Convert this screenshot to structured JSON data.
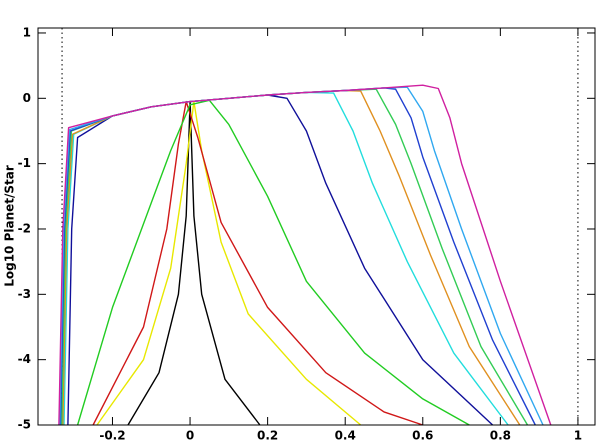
{
  "chart_data": {
    "type": "line",
    "y_label": "Log10 Planet/Star",
    "xlim": [
      -0.392,
      1.044
    ],
    "ylim": [
      -5,
      1.076
    ],
    "xticks": [
      -0.2,
      0,
      0.2,
      0.4,
      0.6,
      0.8,
      1
    ],
    "yticks": [
      -5,
      -4,
      -3,
      -2,
      -1,
      0,
      1
    ],
    "vlines": [
      -0.33,
      1
    ],
    "series": [
      {
        "color": "#000000",
        "x": [
          -0.16,
          -0.08,
          -0.03,
          -0.01,
          0,
          0.01,
          0.03,
          0.09,
          0.18
        ],
        "values": [
          -5,
          -4.2,
          -3,
          -1.8,
          -0.05,
          -1.8,
          -3,
          -4.3,
          -5
        ]
      },
      {
        "color": "#e8e800",
        "x": [
          -0.24,
          -0.12,
          -0.05,
          -0.01,
          0.01,
          0.03,
          0.08,
          0.15,
          0.3,
          0.44
        ],
        "values": [
          -5,
          -4,
          -2.6,
          -1,
          -0.05,
          -0.8,
          -2.2,
          -3.3,
          -4.3,
          -5
        ]
      },
      {
        "color": "#d01818",
        "x": [
          -0.25,
          -0.12,
          -0.06,
          -0.03,
          -0.01,
          0.02,
          0.08,
          0.2,
          0.35,
          0.5,
          0.6
        ],
        "values": [
          -5,
          -3.5,
          -2,
          -0.7,
          -0.05,
          -0.6,
          -1.9,
          -3.2,
          -4.2,
          -4.8,
          -5
        ]
      },
      {
        "color": "#22cc22",
        "x": [
          -0.29,
          -0.2,
          -0.1,
          -0.05,
          0,
          0.05,
          0.1,
          0.2,
          0.3,
          0.45,
          0.6,
          0.72
        ],
        "values": [
          -5,
          -3.2,
          -1.6,
          -0.8,
          -0.1,
          -0.03,
          -0.4,
          -1.5,
          -2.8,
          -3.9,
          -4.6,
          -5
        ]
      },
      {
        "color": "#10109a",
        "x": [
          -0.315,
          -0.305,
          -0.29,
          -0.2,
          -0.1,
          0,
          0.1,
          0.2,
          0.25,
          0.3,
          0.35,
          0.45,
          0.6,
          0.78
        ],
        "values": [
          -5,
          -2,
          -0.6,
          -0.27,
          -0.13,
          -0.05,
          0,
          0.05,
          0,
          -0.5,
          -1.3,
          -2.6,
          -4,
          -5
        ]
      },
      {
        "color": "#22dddd",
        "x": [
          -0.325,
          -0.315,
          -0.3,
          -0.2,
          -0.1,
          0,
          0.1,
          0.2,
          0.3,
          0.37,
          0.42,
          0.47,
          0.56,
          0.68,
          0.82
        ],
        "values": [
          -5,
          -2,
          -0.55,
          -0.27,
          -0.13,
          -0.05,
          0,
          0.05,
          0.09,
          0.08,
          -0.5,
          -1.3,
          -2.5,
          -3.9,
          -5
        ]
      },
      {
        "color": "#e09020",
        "x": [
          -0.328,
          -0.318,
          -0.303,
          -0.2,
          -0.1,
          0,
          0.1,
          0.2,
          0.3,
          0.4,
          0.44,
          0.49,
          0.54,
          0.62,
          0.72,
          0.85
        ],
        "values": [
          -5,
          -2,
          -0.55,
          -0.27,
          -0.13,
          -0.05,
          0,
          0.05,
          0.09,
          0.12,
          0.11,
          -0.5,
          -1.2,
          -2.4,
          -3.8,
          -5
        ]
      },
      {
        "color": "#33cc55",
        "x": [
          -0.331,
          -0.321,
          -0.306,
          -0.2,
          -0.1,
          0,
          0.1,
          0.2,
          0.3,
          0.4,
          0.48,
          0.53,
          0.57,
          0.65,
          0.75,
          0.87
        ],
        "values": [
          -5,
          -2,
          -0.5,
          -0.27,
          -0.13,
          -0.05,
          0,
          0.05,
          0.09,
          0.12,
          0.14,
          -0.4,
          -1,
          -2.3,
          -3.8,
          -5
        ]
      },
      {
        "color": "#2040d0",
        "x": [
          -0.334,
          -0.324,
          -0.309,
          -0.2,
          -0.1,
          0,
          0.1,
          0.2,
          0.3,
          0.4,
          0.5,
          0.53,
          0.57,
          0.6,
          0.68,
          0.78,
          0.89
        ],
        "values": [
          -5,
          -2,
          -0.5,
          -0.27,
          -0.13,
          -0.05,
          0,
          0.05,
          0.09,
          0.12,
          0.16,
          0.14,
          -0.3,
          -0.9,
          -2.2,
          -3.7,
          -5
        ]
      },
      {
        "color": "#30a8f0",
        "x": [
          -0.336,
          -0.326,
          -0.311,
          -0.2,
          -0.1,
          0,
          0.1,
          0.2,
          0.3,
          0.4,
          0.5,
          0.56,
          0.6,
          0.63,
          0.7,
          0.8,
          0.91
        ],
        "values": [
          -5,
          -2,
          -0.48,
          -0.27,
          -0.13,
          -0.05,
          0,
          0.05,
          0.09,
          0.12,
          0.16,
          0.17,
          -0.2,
          -0.8,
          -2,
          -3.6,
          -5
        ]
      },
      {
        "color": "#d020a0",
        "x": [
          -0.338,
          -0.328,
          -0.313,
          -0.2,
          -0.1,
          0,
          0.1,
          0.2,
          0.3,
          0.4,
          0.5,
          0.6,
          0.64,
          0.67,
          0.7,
          0.8,
          0.93
        ],
        "values": [
          -5,
          -2,
          -0.45,
          -0.27,
          -0.13,
          -0.05,
          0,
          0.05,
          0.09,
          0.12,
          0.16,
          0.2,
          0.15,
          -0.3,
          -1,
          -2.8,
          -5
        ]
      }
    ]
  }
}
